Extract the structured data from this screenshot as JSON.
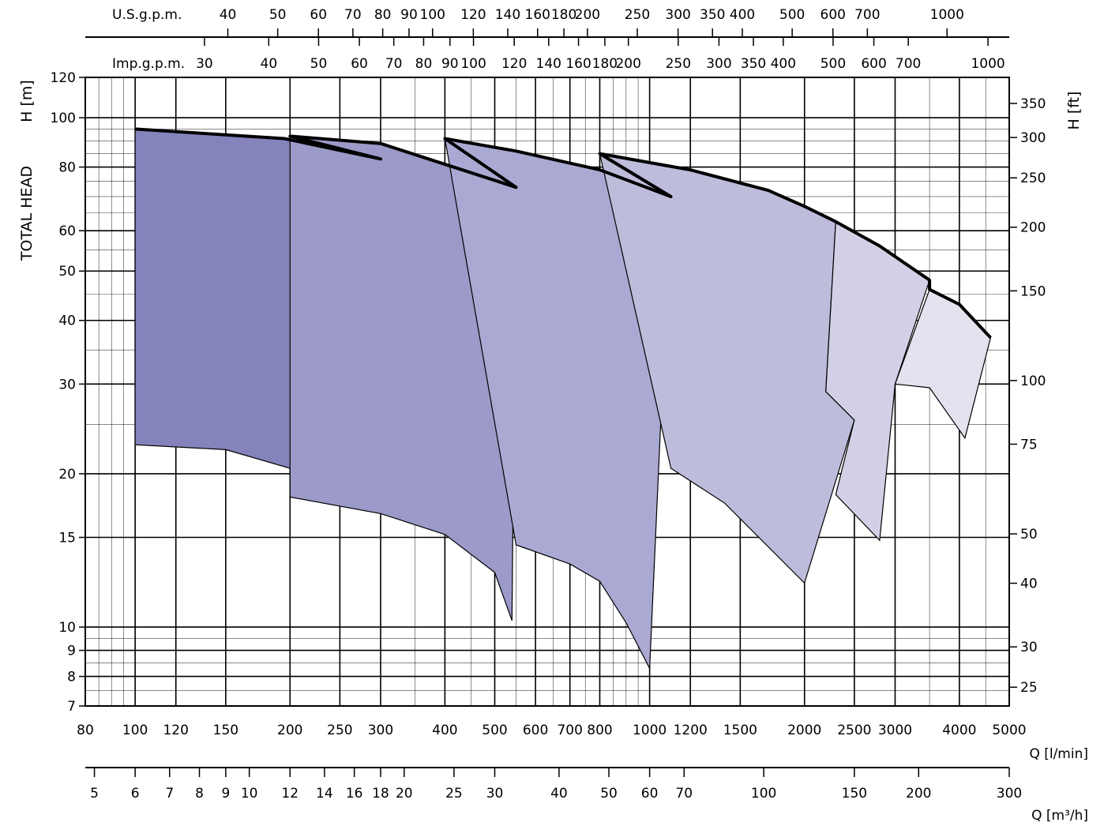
{
  "chart_data": {
    "type": "area",
    "title": "",
    "y_scale": "log",
    "x_scale": "log",
    "grid": true,
    "y_axis_left": {
      "title": "TOTAL HEAD",
      "unit_label": "H [m]",
      "range": [
        7,
        120
      ],
      "ticks": [
        7,
        8,
        9,
        10,
        15,
        20,
        30,
        40,
        50,
        60,
        80,
        100,
        120
      ],
      "tick_labels": [
        "7",
        "8",
        "9",
        "10",
        "15",
        "20",
        "30",
        "40",
        "50",
        "60",
        "80",
        "100",
        "120"
      ]
    },
    "y_axis_right": {
      "unit_label": "H [ft]",
      "ticks": [
        25,
        30,
        40,
        50,
        75,
        100,
        150,
        200,
        250,
        300,
        350
      ],
      "tick_labels": [
        "25",
        "30",
        "40",
        "50",
        "75",
        "100",
        "150",
        "200",
        "250",
        "300",
        "350"
      ]
    },
    "x_axis_main": {
      "unit_label": "Q [l/min]",
      "range": [
        80,
        5000
      ],
      "ticks": [
        80,
        100,
        120,
        150,
        200,
        250,
        300,
        400,
        500,
        600,
        700,
        800,
        1000,
        1200,
        1500,
        2000,
        2500,
        3000,
        4000,
        5000
      ],
      "tick_labels": [
        "80",
        "100",
        "120",
        "150",
        "200",
        "250",
        "300",
        "400",
        "500",
        "600",
        "700",
        "800",
        "1000",
        "1200",
        "1500",
        "2000",
        "2500",
        "3000",
        "4000",
        "5000"
      ]
    },
    "x_axis_m3h": {
      "unit_label": "Q [m³/h]",
      "ticks": [
        5,
        6,
        7,
        8,
        9,
        10,
        12,
        14,
        16,
        18,
        20,
        25,
        30,
        40,
        50,
        60,
        70,
        100,
        150,
        200,
        300
      ],
      "tick_labels": [
        "5",
        "6",
        "7",
        "8",
        "9",
        "10",
        "12",
        "14",
        "16",
        "18",
        "20",
        "25",
        "30",
        "40",
        "50",
        "60",
        "70",
        "100",
        "150",
        "200",
        "300"
      ]
    },
    "x_axis_usgpm": {
      "unit_label": "U.S.g.p.m.",
      "ticks": [
        40,
        50,
        60,
        70,
        80,
        90,
        100,
        120,
        140,
        160,
        180,
        200,
        250,
        300,
        350,
        400,
        500,
        600,
        700,
        1000
      ],
      "tick_labels": [
        "40",
        "50",
        "60",
        "70",
        "80",
        "90",
        "100",
        "120",
        "140",
        "160",
        "180",
        "200",
        "250",
        "300",
        "350",
        "400",
        "500",
        "600",
        "700",
        "1000"
      ]
    },
    "x_axis_impgpm": {
      "unit_label": "Imp.g.p.m.",
      "ticks": [
        30,
        40,
        50,
        60,
        70,
        80,
        90,
        100,
        120,
        140,
        160,
        180,
        200,
        250,
        300,
        350,
        400,
        500,
        600,
        700,
        1000
      ],
      "tick_labels": [
        "30",
        "40",
        "50",
        "60",
        "70",
        "80",
        "90",
        "100",
        "120",
        "140",
        "160",
        "180",
        "200",
        "250",
        "300",
        "350",
        "400",
        "500",
        "600",
        "700",
        "1000"
      ]
    },
    "series": [
      {
        "color": "#8483bb",
        "points": [
          [
            100,
            95
          ],
          [
            195,
            91
          ],
          [
            300,
            83
          ],
          [
            275,
            17.2
          ],
          [
            250,
            17.8
          ],
          [
            200,
            20.5
          ],
          [
            150,
            22.3
          ],
          [
            100,
            22.8
          ]
        ]
      },
      {
        "color": "#9b9ac8",
        "points": [
          [
            200,
            92
          ],
          [
            300,
            89
          ],
          [
            550,
            73
          ],
          [
            540,
            10.3
          ],
          [
            500,
            12.8
          ],
          [
            400,
            15.2
          ],
          [
            300,
            16.7
          ],
          [
            200,
            18
          ]
        ]
      },
      {
        "color": "#aaa9d3",
        "points": [
          [
            400,
            91
          ],
          [
            550,
            86
          ],
          [
            800,
            79
          ],
          [
            1100,
            70
          ],
          [
            1000,
            8.3
          ],
          [
            900,
            10.2
          ],
          [
            800,
            12.3
          ],
          [
            700,
            13.3
          ],
          [
            550,
            14.5
          ]
        ]
      },
      {
        "color": "#bebcdb",
        "points": [
          [
            800,
            85
          ],
          [
            1200,
            79
          ],
          [
            1700,
            72
          ],
          [
            2000,
            67
          ],
          [
            2300,
            62.5
          ],
          [
            2200,
            29
          ],
          [
            2500,
            25.5
          ],
          [
            2000,
            12.2
          ],
          [
            1400,
            17.5
          ],
          [
            1100,
            20.5
          ]
        ]
      },
      {
        "color": "#d2d0e6",
        "points": [
          [
            2300,
            62.5
          ],
          [
            2800,
            56
          ],
          [
            3500,
            48
          ],
          [
            3000,
            30
          ],
          [
            2800,
            14.8
          ],
          [
            2300,
            18.2
          ],
          [
            2500,
            25.5
          ],
          [
            2200,
            29
          ]
        ]
      },
      {
        "color": "#e3e2ef",
        "points": [
          [
            3500,
            46
          ],
          [
            4000,
            43
          ],
          [
            4600,
            37
          ],
          [
            4100,
            23.5
          ],
          [
            3500,
            29.5
          ],
          [
            3000,
            30
          ]
        ]
      }
    ]
  }
}
